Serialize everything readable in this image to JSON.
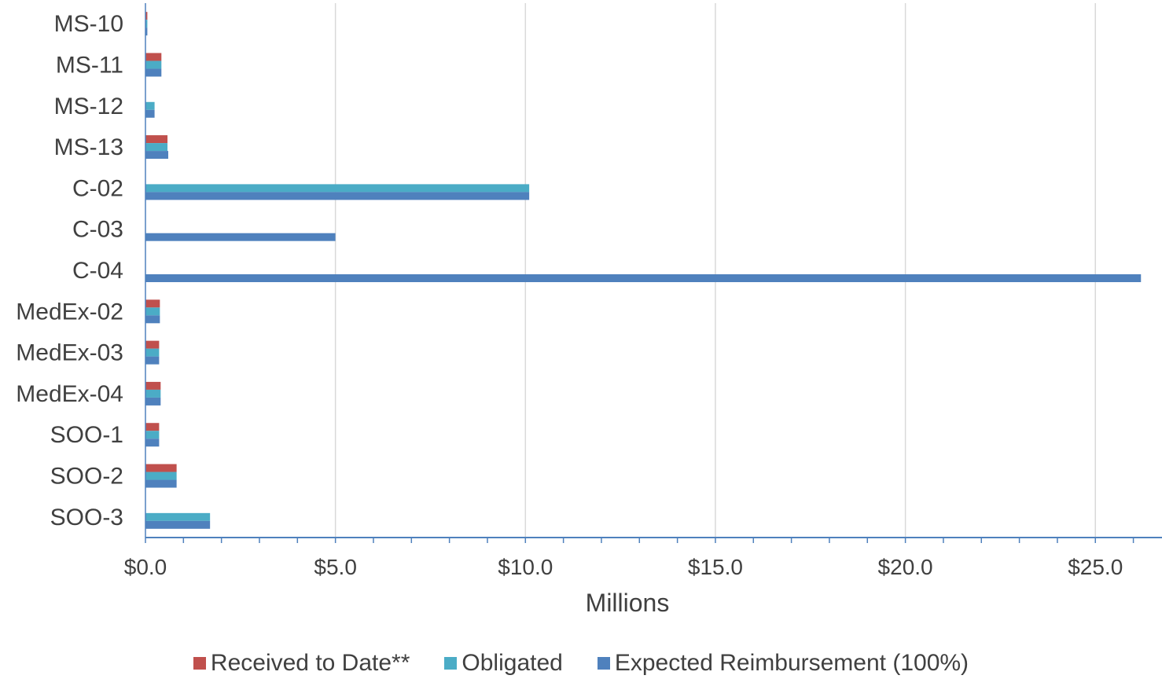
{
  "chart_data": {
    "type": "bar",
    "orientation": "horizontal",
    "categories": [
      "MS-10",
      "MS-11",
      "MS-12",
      "MS-13",
      "C-02",
      "C-03",
      "C-04",
      "MedEx-02",
      "MedEx-03",
      "MedEx-04",
      "SOO-1",
      "SOO-2",
      "SOO-3"
    ],
    "series": [
      {
        "name": "Received to Date**",
        "color": "#c0504d",
        "values": [
          0.05,
          0.42,
          0,
          0.58,
          0,
          0,
          0,
          0.38,
          0.36,
          0.4,
          0.36,
          0.82,
          0
        ]
      },
      {
        "name": "Obligated",
        "color": "#4bacc6",
        "values": [
          0.05,
          0.42,
          0.24,
          0.58,
          10.1,
          0,
          0,
          0.38,
          0.36,
          0.4,
          0.36,
          0.82,
          1.7
        ]
      },
      {
        "name": "Expected Reimbursement (100%)",
        "color": "#4f81bd",
        "values": [
          0.05,
          0.42,
          0.24,
          0.6,
          10.1,
          5.0,
          26.2,
          0.38,
          0.36,
          0.4,
          0.36,
          0.82,
          1.7
        ]
      }
    ],
    "xlabel": "Millions",
    "ylabel": "",
    "xlim": [
      0,
      26.8
    ],
    "xticks": [
      0,
      5,
      10,
      15,
      20,
      25
    ],
    "xtick_labels": [
      "$0.0",
      "$5.0",
      "$10.0",
      "$15.0",
      "$20.0",
      "$25.0"
    ],
    "minor_tick_step": 1,
    "grid": true,
    "legend_position": "bottom"
  }
}
